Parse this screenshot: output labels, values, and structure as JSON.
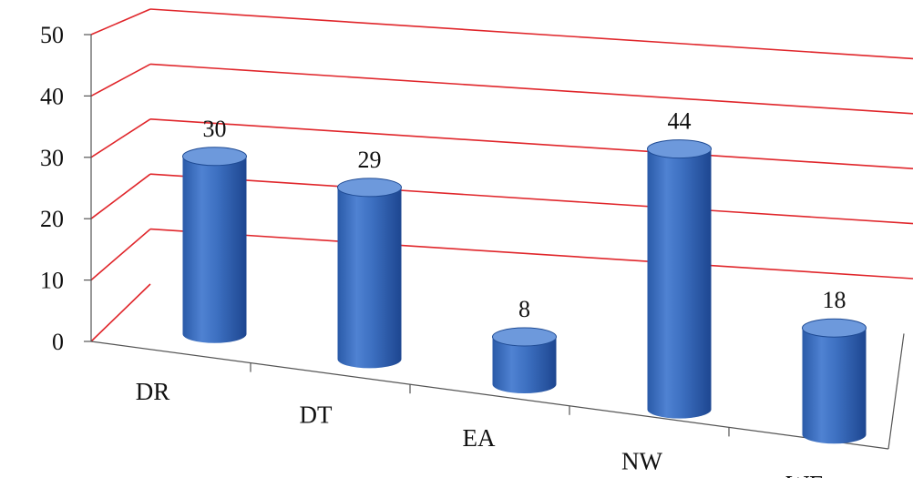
{
  "chart_data": {
    "type": "bar",
    "style": "3d-cylinder",
    "categories": [
      "DR",
      "DT",
      "EA",
      "NW",
      "WE"
    ],
    "values": [
      30,
      29,
      8,
      44,
      18
    ],
    "data_labels": [
      "30",
      "29",
      "8",
      "44",
      "18"
    ],
    "y_ticks": [
      "0",
      "10",
      "20",
      "30",
      "40",
      "50"
    ],
    "ylim": [
      0,
      50
    ],
    "grid": true,
    "colors": {
      "bar": "#3d6fc0",
      "bar_dark": "#1f4b94",
      "bar_top": "#6d99dc",
      "grid": "#e0262b",
      "axis": "#555555"
    }
  }
}
